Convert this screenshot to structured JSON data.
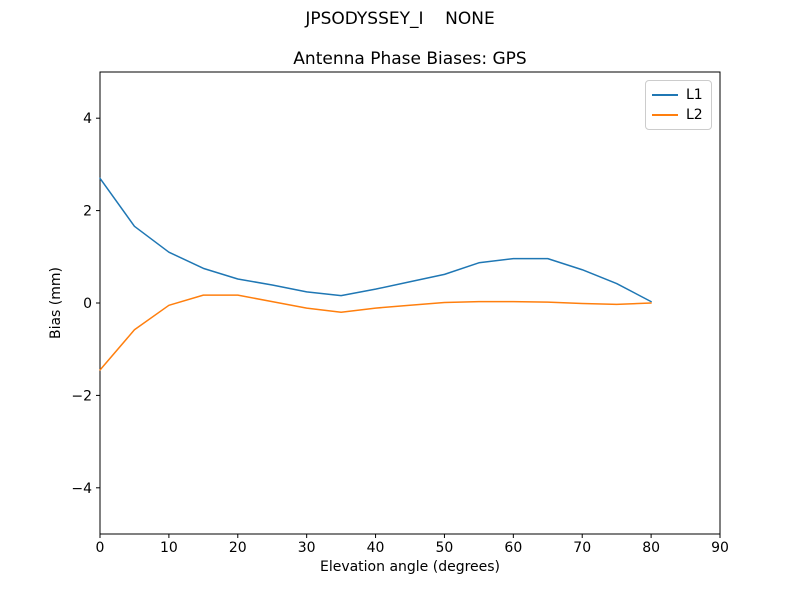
{
  "chart_data": {
    "type": "line",
    "suptitle": "JPSODYSSEY_I    NONE",
    "title": "Antenna Phase Biases: GPS",
    "xlabel": "Elevation angle (degrees)",
    "ylabel": "Bias (mm)",
    "xlim": [
      0,
      90
    ],
    "ylim": [
      -5,
      5
    ],
    "xticks": [
      0,
      10,
      20,
      30,
      40,
      50,
      60,
      70,
      80,
      90
    ],
    "yticks": [
      -4,
      -2,
      0,
      2,
      4
    ],
    "grid": false,
    "legend_position": "upper right",
    "x": [
      0,
      5,
      10,
      15,
      20,
      25,
      30,
      35,
      40,
      45,
      50,
      55,
      60,
      65,
      70,
      75,
      80
    ],
    "series": [
      {
        "name": "L1",
        "color": "#1f77b4",
        "values": [
          2.7,
          1.66,
          1.1,
          0.75,
          0.52,
          0.39,
          0.24,
          0.16,
          0.3,
          0.46,
          0.62,
          0.87,
          0.96,
          0.96,
          0.72,
          0.42,
          0.03
        ]
      },
      {
        "name": "L2",
        "color": "#ff7f0e",
        "values": [
          -1.45,
          -0.58,
          -0.05,
          0.17,
          0.17,
          0.03,
          -0.11,
          -0.2,
          -0.11,
          -0.05,
          0.01,
          0.03,
          0.03,
          0.02,
          -0.01,
          -0.03,
          0.0
        ]
      }
    ],
    "axis_color": "#000000",
    "tick_label_color": "#000000",
    "legend_border_color": "#cccccc"
  }
}
